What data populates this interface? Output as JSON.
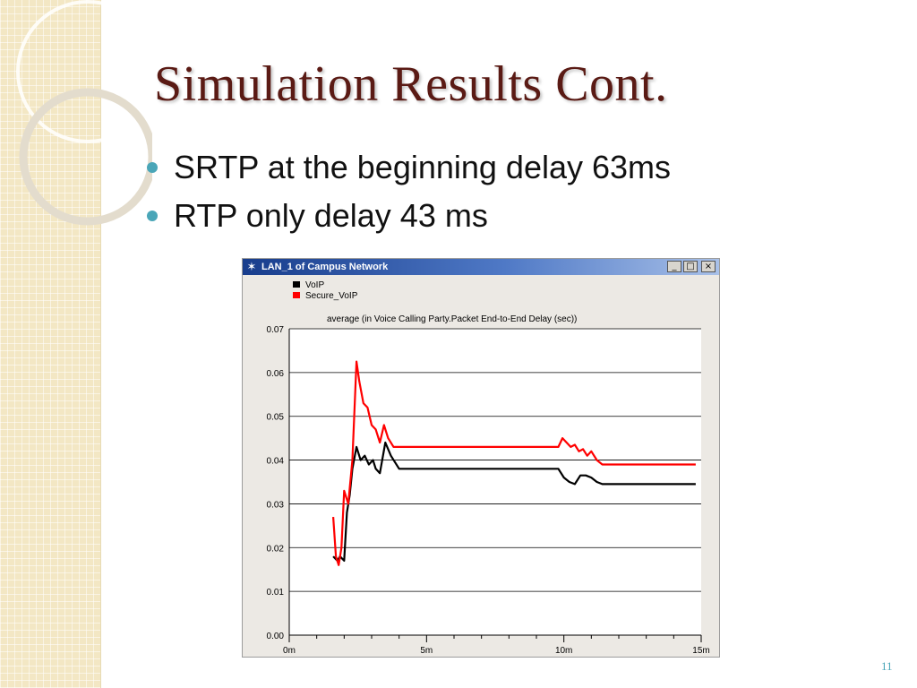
{
  "slide": {
    "title": "Simulation Results Cont.",
    "bullets": [
      "SRTP at the beginning delay 63ms",
      "RTP only delay 43 ms"
    ],
    "page_number": "11"
  },
  "window": {
    "title": "LAN_1 of Campus Network",
    "icon": "star-icon",
    "controls": {
      "minimize": "_",
      "maximize": "□",
      "close": "×"
    }
  },
  "colors": {
    "title": "#5a1a14",
    "bullet": "#4aa6b8",
    "series_voip": "#000000",
    "series_secure": "#ff0000"
  },
  "chart_data": {
    "type": "line",
    "title": "average (in Voice Calling Party.Packet End-to-End Delay (sec))",
    "xlabel": "",
    "ylabel": "",
    "xlim": [
      0,
      15
    ],
    "ylim": [
      0,
      0.07
    ],
    "x_ticks": [
      {
        "value": 0,
        "label": "0m"
      },
      {
        "value": 5,
        "label": "5m"
      },
      {
        "value": 10,
        "label": "10m"
      },
      {
        "value": 15,
        "label": "15m"
      }
    ],
    "y_ticks": [
      {
        "value": 0,
        "label": "0.00"
      },
      {
        "value": 0.01,
        "label": "0.01"
      },
      {
        "value": 0.02,
        "label": "0.02"
      },
      {
        "value": 0.03,
        "label": "0.03"
      },
      {
        "value": 0.04,
        "label": "0.04"
      },
      {
        "value": 0.05,
        "label": "0.05"
      },
      {
        "value": 0.06,
        "label": "0.06"
      },
      {
        "value": 0.07,
        "label": "0.07"
      }
    ],
    "grid": true,
    "legend_position": "top-left",
    "series": [
      {
        "name": "VoIP",
        "color": "#000000",
        "x": [
          1.6,
          1.75,
          1.85,
          2.0,
          2.1,
          2.2,
          2.3,
          2.45,
          2.6,
          2.75,
          2.9,
          3.05,
          3.15,
          3.3,
          3.5,
          3.7,
          4.0,
          5.0,
          6.0,
          7.0,
          8.0,
          9.0,
          9.5,
          9.8,
          10.0,
          10.2,
          10.4,
          10.6,
          10.8,
          11.0,
          11.2,
          11.4,
          11.6,
          12.0,
          13.0,
          14.0,
          14.8
        ],
        "values": [
          0.018,
          0.017,
          0.018,
          0.017,
          0.028,
          0.032,
          0.038,
          0.043,
          0.04,
          0.041,
          0.039,
          0.04,
          0.038,
          0.037,
          0.044,
          0.041,
          0.038,
          0.038,
          0.038,
          0.038,
          0.038,
          0.038,
          0.038,
          0.038,
          0.036,
          0.035,
          0.0345,
          0.0365,
          0.0365,
          0.036,
          0.035,
          0.0345,
          0.0345,
          0.0345,
          0.0345,
          0.0345,
          0.0345
        ]
      },
      {
        "name": "Secure_VoIP",
        "color": "#ff0000",
        "x": [
          1.6,
          1.7,
          1.8,
          1.9,
          2.0,
          2.15,
          2.3,
          2.45,
          2.55,
          2.7,
          2.85,
          3.0,
          3.15,
          3.3,
          3.45,
          3.6,
          3.8,
          4.0,
          5.0,
          6.0,
          7.0,
          8.0,
          9.0,
          9.5,
          9.8,
          9.95,
          10.1,
          10.25,
          10.4,
          10.55,
          10.7,
          10.85,
          11.0,
          11.2,
          11.4,
          12.0,
          13.0,
          14.0,
          14.8
        ],
        "values": [
          0.027,
          0.018,
          0.016,
          0.02,
          0.033,
          0.03,
          0.04,
          0.0625,
          0.058,
          0.053,
          0.052,
          0.048,
          0.047,
          0.044,
          0.048,
          0.045,
          0.043,
          0.043,
          0.043,
          0.043,
          0.043,
          0.043,
          0.043,
          0.043,
          0.043,
          0.045,
          0.044,
          0.043,
          0.0435,
          0.042,
          0.0425,
          0.041,
          0.042,
          0.04,
          0.039,
          0.039,
          0.039,
          0.039,
          0.039
        ]
      }
    ]
  }
}
